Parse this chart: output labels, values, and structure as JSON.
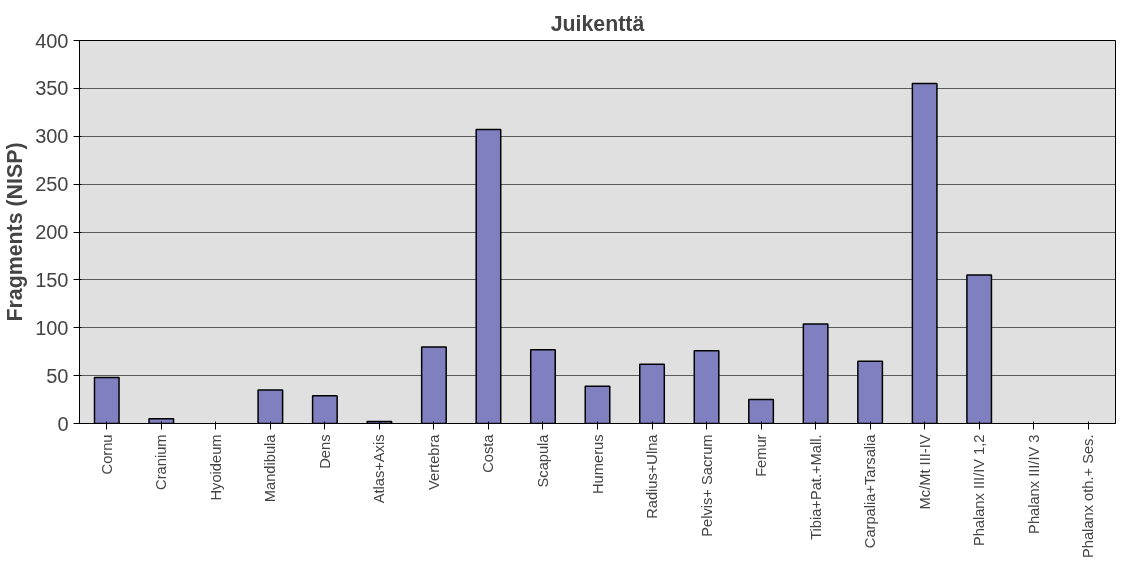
{
  "chart_data": {
    "type": "bar",
    "title": "Juikenttä",
    "ylabel": "Fragments (NISP)",
    "categories": [
      "Cornu",
      "Cranium",
      "Hyoideum",
      "Mandibula",
      "Dens",
      "Atlas+Axis",
      "Vertebra",
      "Costa",
      "Scapula",
      "Humerus",
      "Radius+Ulna",
      "Pelvis+ Sacrum",
      "Femur",
      "Tibia+Pat.+Mall.",
      "Carpalia+Tarsalia",
      "Mc/Mt III-IV",
      "Phalanx III/IV 1,2",
      "Phalanx III/IV 3",
      "Phalanx oth.+ Ses."
    ],
    "values": [
      48,
      5,
      0,
      35,
      29,
      2,
      80,
      307,
      77,
      39,
      62,
      76,
      25,
      104,
      65,
      355,
      155,
      0,
      0
    ],
    "color": "#8080c0",
    "ylim": [
      0,
      400
    ],
    "yticks": [
      0,
      50,
      100,
      150,
      200,
      250,
      300,
      350,
      400
    ],
    "grid": "y"
  }
}
